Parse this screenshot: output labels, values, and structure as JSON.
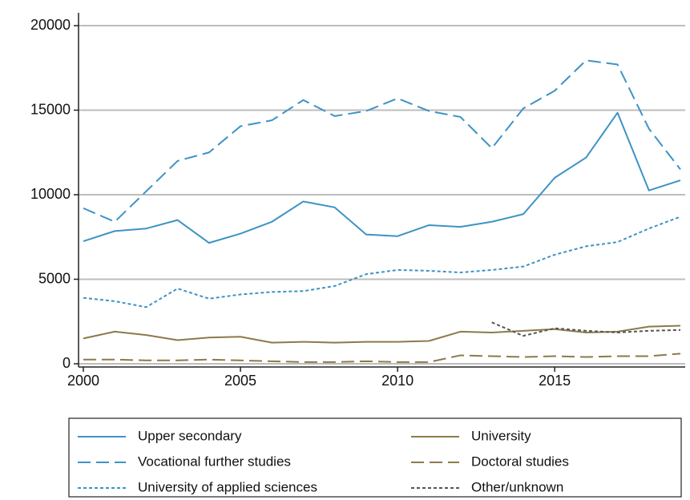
{
  "chart_data": {
    "type": "line",
    "x": [
      2000,
      2001,
      2002,
      2003,
      2004,
      2005,
      2006,
      2007,
      2008,
      2009,
      2010,
      2011,
      2012,
      2013,
      2014,
      2015,
      2016,
      2017,
      2018,
      2019
    ],
    "xlim": [
      2000,
      2019
    ],
    "xticks": [
      2000,
      2005,
      2010,
      2015
    ],
    "ylim": [
      0,
      20000
    ],
    "yticks": [
      0,
      5000,
      10000,
      15000,
      20000
    ],
    "grid": true,
    "series": [
      {
        "name": "Upper secondary",
        "color": "#3d93c4",
        "dash": "solid",
        "values": [
          7250,
          7850,
          8000,
          8500,
          7150,
          7700,
          8400,
          9600,
          9250,
          7650,
          7550,
          8200,
          8100,
          8400,
          8850,
          11000,
          12200,
          14850,
          10250,
          10850
        ]
      },
      {
        "name": "Vocational further studies",
        "color": "#3d93c4",
        "dash": "long",
        "values": [
          9200,
          8400,
          10200,
          12000,
          12500,
          14050,
          14400,
          15600,
          14650,
          14950,
          15700,
          14950,
          14600,
          12750,
          15100,
          16150,
          17950,
          17700,
          13900,
          11500
        ]
      },
      {
        "name": "University of applied sciences",
        "color": "#3d93c4",
        "dash": "short",
        "values": [
          3900,
          3700,
          3350,
          4450,
          3850,
          4100,
          4250,
          4300,
          4600,
          5300,
          5550,
          5500,
          5400,
          5550,
          5750,
          6450,
          6950,
          7200,
          8000,
          8700
        ]
      },
      {
        "name": "University",
        "color": "#8c7a4b",
        "dash": "solid",
        "values": [
          1500,
          1900,
          1700,
          1400,
          1550,
          1600,
          1250,
          1300,
          1250,
          1300,
          1300,
          1350,
          1900,
          1850,
          1950,
          2050,
          1850,
          1900,
          2200,
          2250
        ]
      },
      {
        "name": "Doctoral studies",
        "color": "#8c7a4b",
        "dash": "long",
        "values": [
          250,
          250,
          200,
          200,
          250,
          200,
          150,
          100,
          100,
          150,
          100,
          100,
          500,
          450,
          400,
          450,
          400,
          450,
          450,
          600
        ]
      },
      {
        "name": "Other/unknown",
        "color": "#555555",
        "dash": "short",
        "values": [
          null,
          null,
          null,
          null,
          null,
          null,
          null,
          null,
          null,
          null,
          null,
          null,
          null,
          2450,
          1650,
          2100,
          1950,
          1850,
          1950,
          2000
        ]
      }
    ]
  }
}
